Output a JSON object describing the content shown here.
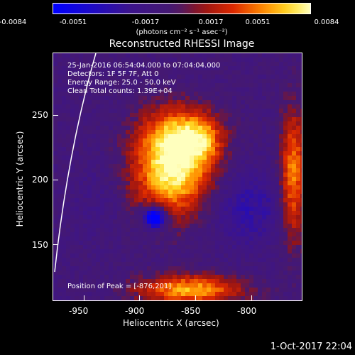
{
  "colorbar": {
    "ticks": [
      "-0.0084",
      "-0.0051",
      "-0.0017",
      "0.0017",
      "0.0051",
      "0.0084"
    ],
    "unit": "(photons cm⁻² s⁻¹ asec⁻²)"
  },
  "title": "Reconstructed RHESSI Image",
  "info": {
    "time": "25-Jan-2016 06:54:04.000 to 07:04:04.000",
    "detectors": "Detectors: 1F 5F 7F, Att 0",
    "energy": "Energy Range: 25.0 - 50.0 keV",
    "clean": "Clean    Total counts: 1.39E+04"
  },
  "peak": "Position of Peak = [-876,201]",
  "axes": {
    "xlabel": "Heliocentric X (arcsec)",
    "ylabel": "Heliocentric Y (arcsec)",
    "xticks": [
      "-950",
      "-900",
      "-850",
      "-800"
    ],
    "yticks": [
      "250",
      "200",
      "150"
    ]
  },
  "footer": "1-Oct-2017 22:04",
  "colors": {
    "low": "#0000ff",
    "background": "#3a1a6e",
    "mid": "#cc1a00",
    "high": "#ffff88"
  }
}
